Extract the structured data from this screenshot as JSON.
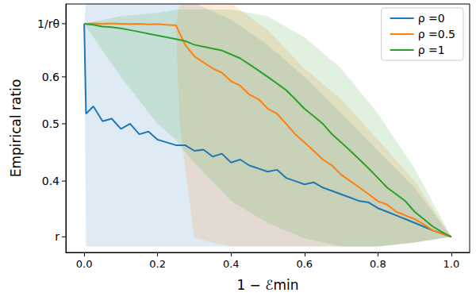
{
  "chart_data": {
    "type": "line",
    "x_label": "1 − ℰmin",
    "y_label": "Empirical ratio",
    "log": "y",
    "grid": false,
    "legend": "upper right",
    "xlim": [
      -0.05,
      1.05
    ],
    "xticks": [
      {
        "value": 0,
        "label": "0.0"
      },
      {
        "value": 0.2,
        "label": "0.2"
      },
      {
        "value": 0.4,
        "label": "0.4"
      },
      {
        "value": 0.6,
        "label": "0.6"
      },
      {
        "value": 0.8,
        "label": "0.8"
      },
      {
        "value": 1,
        "label": "1.0"
      }
    ],
    "ylim": [
      0.303,
      0.797
    ],
    "yticks": [
      {
        "value": 0.322,
        "label": "r"
      },
      0.4,
      0.5,
      0.6,
      {
        "value": 0.738,
        "label": "1/rθ"
      }
    ],
    "x": [
      0,
      0.005,
      0.025,
      0.05,
      0.075,
      0.1,
      0.125,
      0.15,
      0.175,
      0.2,
      0.225,
      0.25,
      0.275,
      0.3,
      0.325,
      0.35,
      0.375,
      0.4,
      0.425,
      0.45,
      0.475,
      0.5,
      0.525,
      0.55,
      0.575,
      0.6,
      0.625,
      0.65,
      0.675,
      0.7,
      0.725,
      0.75,
      0.775,
      0.8,
      0.825,
      0.85,
      0.875,
      0.9,
      0.925,
      0.95,
      0.975,
      1.0
    ],
    "series": [
      {
        "name": "ρ =0",
        "color": "#1f77b4",
        "values": [
          0.738,
          0.52,
          0.535,
          0.505,
          0.51,
          0.49,
          0.5,
          0.48,
          0.485,
          0.47,
          0.465,
          0.46,
          0.46,
          0.45,
          0.452,
          0.44,
          0.445,
          0.43,
          0.435,
          0.425,
          0.42,
          0.415,
          0.418,
          0.405,
          0.4,
          0.395,
          0.398,
          0.39,
          0.385,
          0.38,
          0.375,
          0.37,
          0.368,
          0.36,
          0.355,
          0.35,
          0.345,
          0.34,
          0.335,
          0.33,
          0.326,
          0.322
        ],
        "band": {
          "x": [
            0,
            0.005,
            0.1,
            0.2,
            0.25,
            0.26,
            0.3,
            0.4,
            0.5,
            0.6,
            0.7,
            0.8,
            0.9,
            1.0
          ],
          "lower": [
            0.738,
            0.31,
            0.31,
            0.31,
            0.31,
            0.31,
            0.31,
            0.31,
            0.31,
            0.31,
            0.31,
            0.31,
            0.315,
            0.322
          ],
          "upper": [
            0.738,
            0.8,
            0.8,
            0.8,
            0.8,
            0.8,
            0.8,
            0.75,
            0.68,
            0.6,
            0.52,
            0.45,
            0.39,
            0.322
          ]
        }
      },
      {
        "name": "ρ =0.5",
        "color": "#ff7f0e",
        "values": [
          0.738,
          0.738,
          0.739,
          0.738,
          0.739,
          0.738,
          0.737,
          0.738,
          0.736,
          0.737,
          0.735,
          0.733,
          0.68,
          0.65,
          0.635,
          0.62,
          0.61,
          0.59,
          0.58,
          0.56,
          0.55,
          0.53,
          0.52,
          0.5,
          0.48,
          0.465,
          0.45,
          0.435,
          0.425,
          0.41,
          0.4,
          0.39,
          0.38,
          0.37,
          0.365,
          0.355,
          0.35,
          0.345,
          0.338,
          0.33,
          0.326,
          0.322
        ],
        "band": {
          "x": [
            0,
            0.005,
            0.1,
            0.2,
            0.25,
            0.26,
            0.3,
            0.4,
            0.5,
            0.6,
            0.7,
            0.8,
            0.9,
            1.0
          ],
          "lower": [
            0.738,
            0.738,
            0.738,
            0.738,
            0.733,
            0.5,
            0.32,
            0.31,
            0.31,
            0.31,
            0.31,
            0.31,
            0.315,
            0.322
          ],
          "upper": [
            0.738,
            0.738,
            0.738,
            0.738,
            0.733,
            0.8,
            0.8,
            0.8,
            0.72,
            0.62,
            0.55,
            0.47,
            0.4,
            0.322
          ]
        }
      },
      {
        "name": "ρ =1",
        "color": "#2ca02c",
        "values": [
          0.738,
          0.737,
          0.735,
          0.73,
          0.728,
          0.725,
          0.72,
          0.715,
          0.71,
          0.705,
          0.7,
          0.695,
          0.69,
          0.68,
          0.675,
          0.67,
          0.665,
          0.655,
          0.645,
          0.63,
          0.615,
          0.6,
          0.585,
          0.57,
          0.55,
          0.53,
          0.515,
          0.5,
          0.48,
          0.465,
          0.45,
          0.435,
          0.42,
          0.405,
          0.39,
          0.38,
          0.37,
          0.355,
          0.345,
          0.335,
          0.328,
          0.322
        ],
        "band": {
          "x": [
            0,
            0.005,
            0.1,
            0.2,
            0.25,
            0.26,
            0.3,
            0.4,
            0.5,
            0.6,
            0.7,
            0.8,
            0.9,
            1.0
          ],
          "lower": [
            0.738,
            0.73,
            0.6,
            0.5,
            0.47,
            0.46,
            0.43,
            0.37,
            0.34,
            0.32,
            0.31,
            0.31,
            0.315,
            0.322
          ],
          "upper": [
            0.738,
            0.74,
            0.76,
            0.77,
            0.78,
            0.78,
            0.78,
            0.78,
            0.76,
            0.7,
            0.62,
            0.52,
            0.42,
            0.322
          ]
        }
      }
    ]
  }
}
